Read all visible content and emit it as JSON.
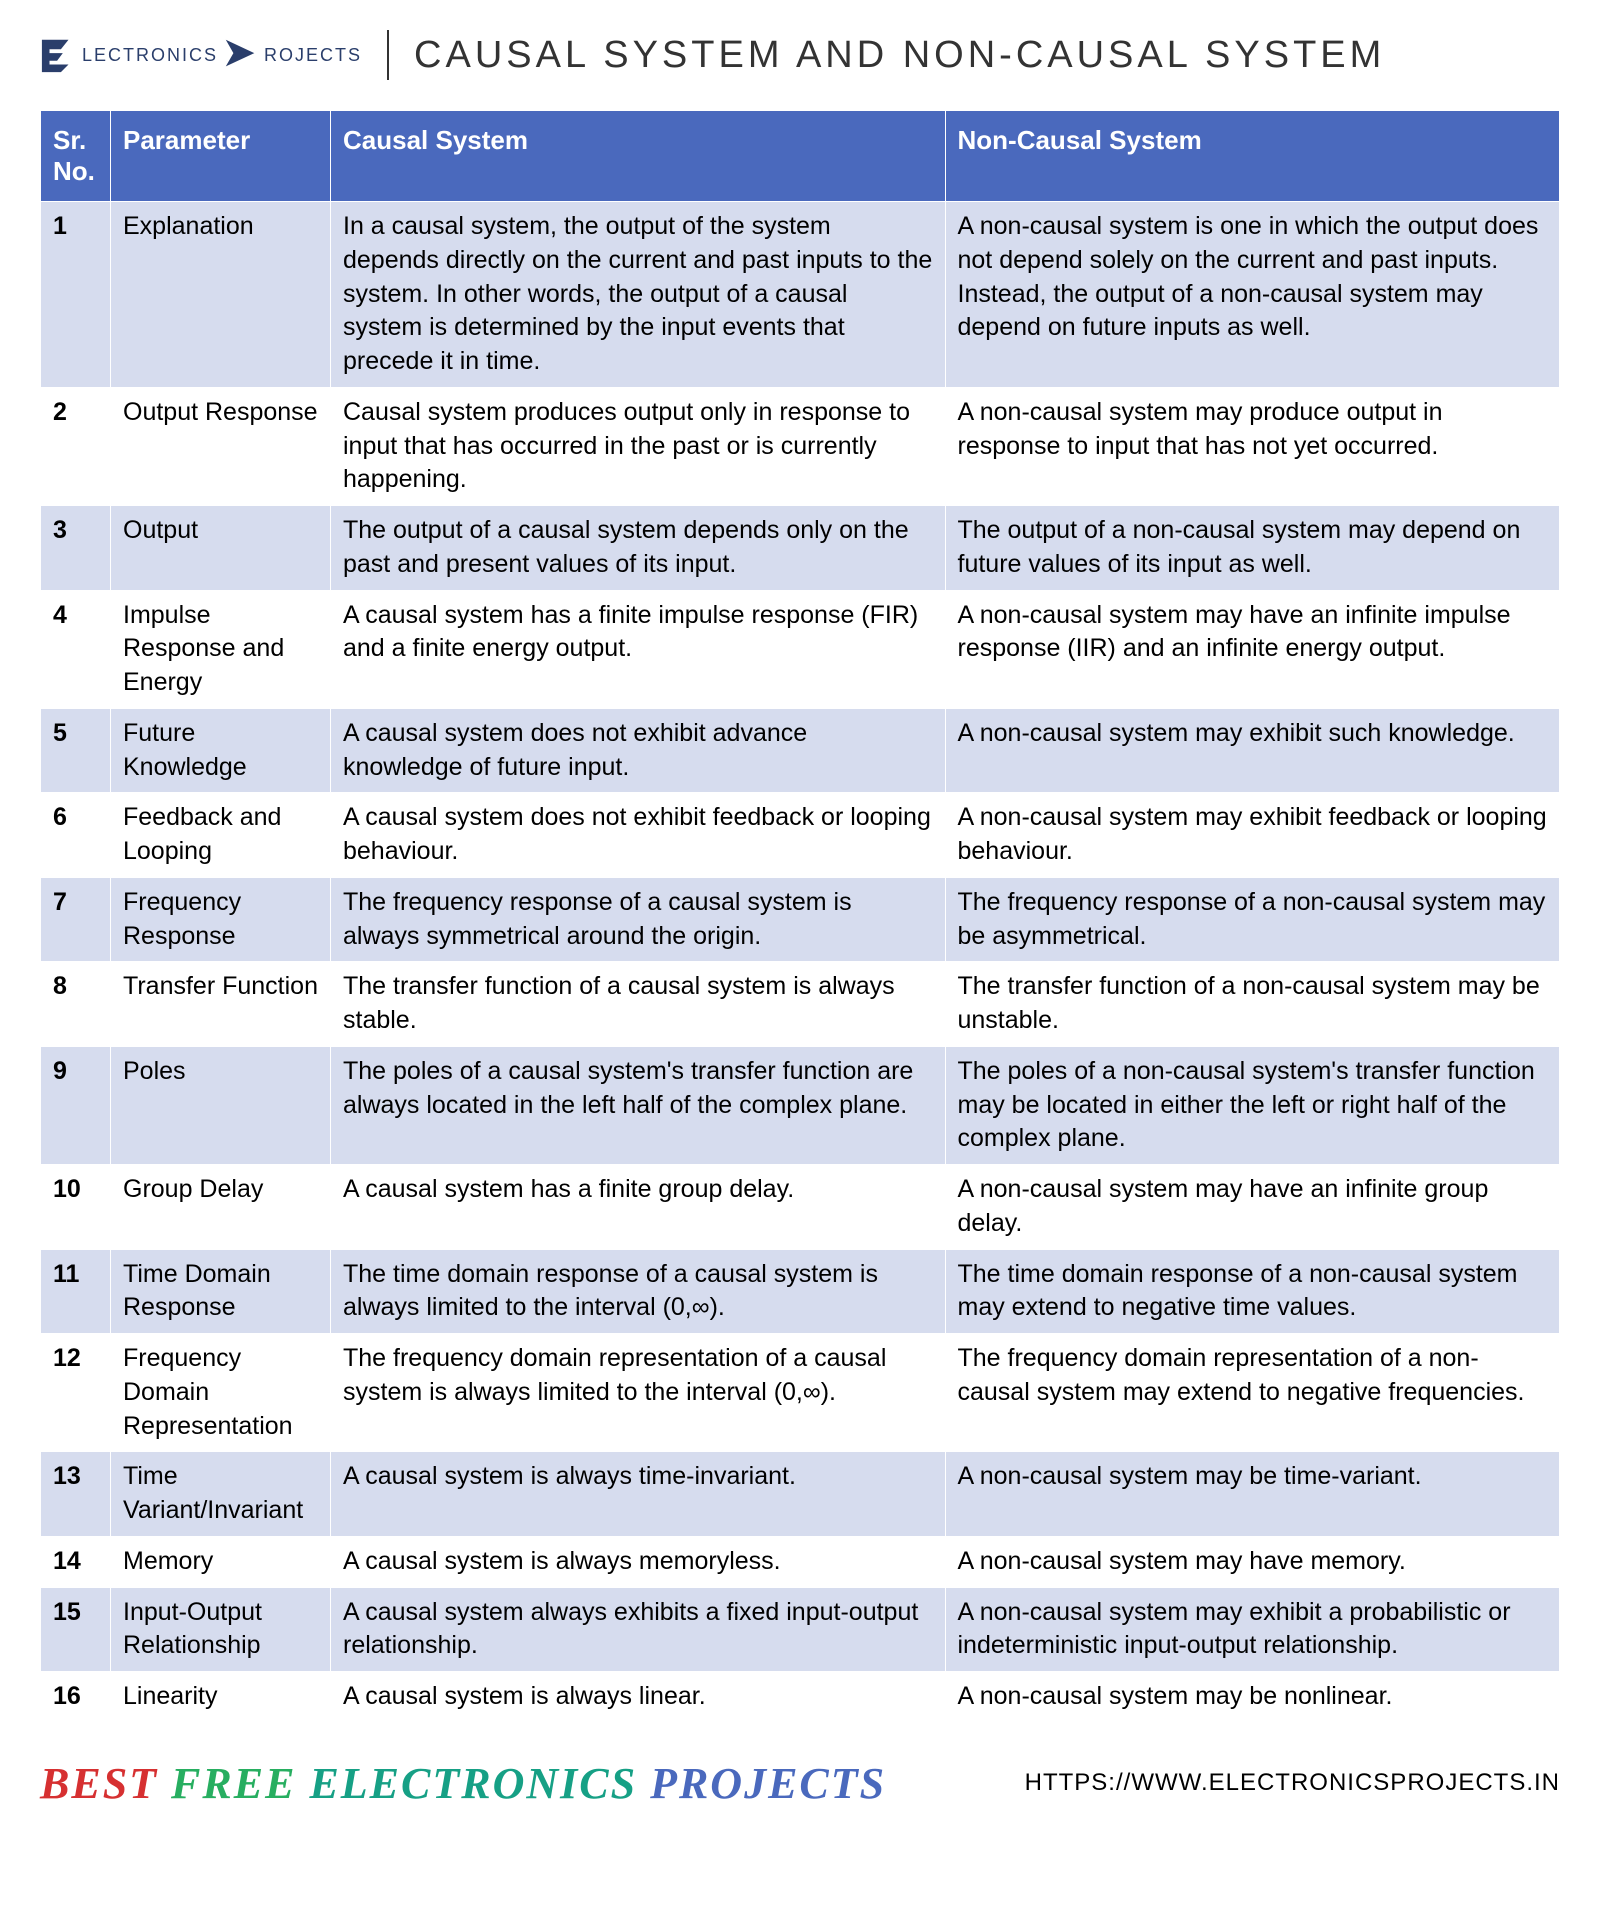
{
  "header": {
    "logo_word1": "LECTRONICS",
    "logo_word2": "ROJECTS",
    "title": "CAUSAL SYSTEM AND NON-CAUSAL SYSTEM",
    "logo_fill": "#2a3e6b"
  },
  "table": {
    "header_bg": "#4a69bd",
    "header_fg": "#ffffff",
    "row_odd_bg": "#d6dcee",
    "row_even_bg": "#ffffff",
    "columns": [
      "Sr. No.",
      "Parameter",
      "Causal System",
      "Non-Causal System"
    ],
    "rows": [
      {
        "sr": "1",
        "param": "Explanation",
        "causal": "In a causal system, the output of the system depends directly on the current and past inputs to the system. In other words, the output of a causal system is determined by the input events that precede it in time.",
        "noncausal": "A non-causal system is one in which the output does not depend solely on the current and past inputs. Instead, the output of a non-causal system may depend on future inputs as well."
      },
      {
        "sr": "2",
        "param": "Output Response",
        "causal": "Causal system produces output only in response to input that has occurred in the past or is currently happening.",
        "noncausal": "A non-causal system may produce output in response to input that has not yet occurred."
      },
      {
        "sr": "3",
        "param": "Output",
        "causal": "The output of a causal system depends only on the past and present values of its input.",
        "noncausal": "The output of a non-causal system may depend on future values of its input as well."
      },
      {
        "sr": "4",
        "param": "Impulse Response and Energy",
        "causal": "A causal system has a finite impulse response (FIR) and a finite energy output.",
        "noncausal": "A non-causal system may have an infinite impulse response (IIR) and an infinite energy output."
      },
      {
        "sr": "5",
        "param": "Future Knowledge",
        "causal": "A causal system does not exhibit advance knowledge of future input.",
        "noncausal": "A non-causal system may exhibit such knowledge."
      },
      {
        "sr": "6",
        "param": "Feedback and Looping",
        "causal": "A causal system does not exhibit feedback or looping behaviour.",
        "noncausal": "A non-causal system may exhibit feedback or looping behaviour."
      },
      {
        "sr": "7",
        "param": "Frequency Response",
        "causal": "The frequency response of a causal system is always symmetrical around the origin.",
        "noncausal": "The frequency response of a non-causal system may be asymmetrical."
      },
      {
        "sr": "8",
        "param": "Transfer Function",
        "causal": "The transfer function of a causal system is always stable.",
        "noncausal": "The transfer function of a non-causal system may be unstable."
      },
      {
        "sr": "9",
        "param": "Poles",
        "causal": "The poles of a causal system's transfer function are always located in the left half of the complex plane.",
        "noncausal": "The poles of a non-causal system's transfer function may be located in either the left or right half of the complex plane."
      },
      {
        "sr": "10",
        "param": "Group Delay",
        "causal": "A causal system has a finite group delay.",
        "noncausal": "A non-causal system may have an infinite group delay."
      },
      {
        "sr": "11",
        "param": "Time Domain Response",
        "causal": "The time domain response of a causal system is always limited to the interval (0,∞).",
        "noncausal": "The time domain response of a non-causal system may extend to negative time values."
      },
      {
        "sr": "12",
        "param": "Frequency Domain Representation",
        "causal": "The frequency domain representation of a causal system is always limited to the interval (0,∞).",
        "noncausal": "The frequency domain representation of a non-causal system may extend to negative frequencies."
      },
      {
        "sr": "13",
        "param": "Time Variant/Invariant",
        "causal": "A causal system is always time-invariant.",
        "noncausal": "A non-causal system may be time-variant."
      },
      {
        "sr": "14",
        "param": "Memory",
        "causal": "A causal system is always memoryless.",
        "noncausal": "A non-causal system may have memory."
      },
      {
        "sr": "15",
        "param": "Input-Output Relationship",
        "causal": "A causal system always exhibits a fixed input-output relationship.",
        "noncausal": "A non-causal system may exhibit a probabilistic or indeterministic input-output relationship."
      },
      {
        "sr": "16",
        "param": "Linearity",
        "causal": "A causal system is always linear.",
        "noncausal": "A non-causal system may be nonlinear."
      }
    ]
  },
  "footer": {
    "tagline_w1": "BEST",
    "tagline_w2": "FREE",
    "tagline_w3": "ELECTRONICS",
    "tagline_w4": "PROJECTS",
    "url": "HTTPS://WWW.ELECTRONICSPROJECTS.IN",
    "colors": {
      "w1": "#d63031",
      "w2": "#27ae60",
      "w3": "#16a085",
      "w4": "#4a69bd"
    }
  }
}
